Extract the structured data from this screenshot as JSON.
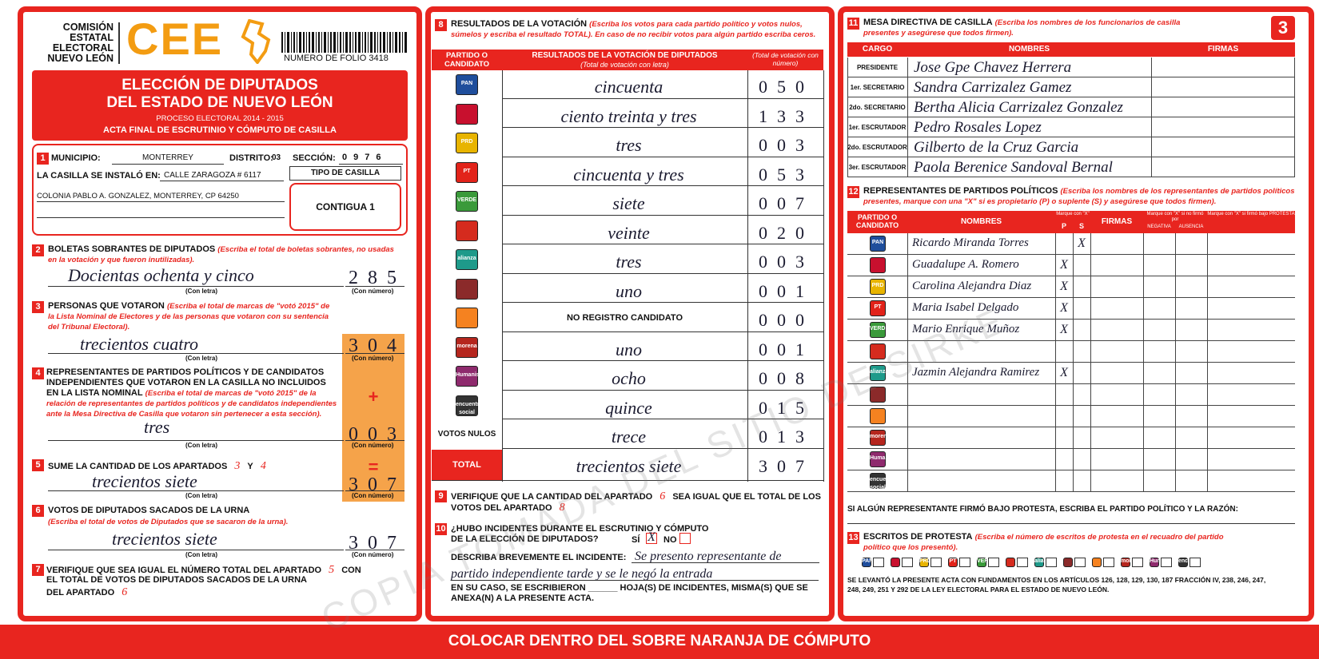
{
  "header": {
    "org": "COMISIÓN\nESTATAL\nELECTORAL\nNUEVO LEÓN",
    "logo": "CEE",
    "folio": "NUMERO DE FOLIO 3418",
    "title": "ELECCIÓN DE DIPUTADOS\nDEL ESTADO DE NUEVO LEÓN",
    "process": "PROCESO ELECTORAL 2014 - 2015",
    "subtitle": "ACTA FINAL DE ESCRUTINIO Y CÓMPUTO DE CASILLA",
    "page_number": "3"
  },
  "parties": [
    {
      "logo": "PAN",
      "color": "#1f4e9c"
    },
    {
      "color": "#c8102e"
    },
    {
      "logo": "PRD",
      "color": "#e8b400"
    },
    {
      "logo": "PT",
      "color": "#e2231a"
    },
    {
      "logo": "VERDE",
      "color": "#3a9a3a"
    },
    {
      "color": "#d52b1e"
    },
    {
      "logo": "alianza",
      "color": "#1e9a8a"
    },
    {
      "color": "#8b2a2a"
    },
    {
      "color": "#f58220"
    },
    {
      "logo": "morena",
      "color": "#b5261e"
    },
    {
      "logo": "Humanista",
      "color": "#8e2a6d"
    },
    {
      "logo": "encuentro social",
      "color": "#333333"
    }
  ],
  "section1": {
    "number": "1",
    "municipio_label": "MUNICIPIO:",
    "municipio": "MONTERREY",
    "distrito_label": "DISTRITO:",
    "distrito": "03",
    "seccion_label": "SECCIÓN:",
    "seccion": "0976",
    "casilla_label": "LA CASILLA SE INSTALÓ EN:",
    "address1": "CALLE ZARAGOZA # 6117",
    "address2": "COLONIA PABLO A. GONZALEZ, MONTERREY, CP 64250",
    "tipo_label": "TIPO DE CASILLA",
    "tipo": "CONTIGUA 1"
  },
  "captions": {
    "letter": "(Con letra)",
    "number": "(Con número)"
  },
  "section2": {
    "number": "2",
    "title": "BOLETAS SOBRANTES DE DIPUTADOS",
    "instruction": "(Escriba el total de boletas sobrantes, no usadas en la votación y que fueron inutilizadas).",
    "letter": "Docientas ochenta y cinco",
    "digits": "285"
  },
  "section3": {
    "number": "3",
    "title": "PERSONAS QUE VOTARON",
    "instruction": "(Escriba el total de marcas de \"votó 2015\" de la Lista Nominal de Electores y de las personas que votaron con su sentencia del Tribunal Electoral).",
    "letter": "trecientos cuatro",
    "digits": "304"
  },
  "section4": {
    "number": "4",
    "title": "REPRESENTANTES DE PARTIDOS POLÍTICOS Y DE CANDIDATOS INDEPENDIENTES QUE VOTARON EN LA CASILLA NO INCLUIDOS EN LA LISTA NOMINAL",
    "instruction": "(Escriba el total de marcas de \"votó 2015\" de la relación de representantes de partidos políticos y de candidatos independientes ante la Mesa Directiva de Casilla que votaron sin pertenecer a esta sección).",
    "letter": "tres",
    "digits": "003",
    "operator": "+"
  },
  "section5": {
    "number": "5",
    "title": "SUME LA CANTIDAD DE LOS APARTADOS",
    "hand_a": "3",
    "conj": "Y",
    "hand_b": "4",
    "letter": "trecientos siete",
    "digits": "307",
    "operator": "="
  },
  "section6": {
    "number": "6",
    "title": "VOTOS DE DIPUTADOS SACADOS DE LA URNA",
    "instruction": "(Escriba el total de votos de Diputados que se sacaron de la urna).",
    "letter": "trecientos siete",
    "digits": "307"
  },
  "section7": {
    "number": "7",
    "line1": "VERIFIQUE QUE SEA IGUAL EL NÚMERO TOTAL DEL APARTADO",
    "hand1": "5",
    "line1b": "CON",
    "line2": "EL TOTAL DE VOTOS DE DIPUTADOS SACADOS DE LA URNA",
    "line3": "DEL APARTADO",
    "hand2": "6"
  },
  "section8": {
    "number": "8",
    "title": "RESULTADOS DE LA VOTACIÓN",
    "instruction": "(Escriba los votos para cada partido político y votos nulos, súmelos y escriba el resultado TOTAL). En caso de no recibir votos para algún partido escriba ceros.",
    "col_party": "PARTIDO O CANDIDATO",
    "col_letter": "RESULTADOS DE LA VOTACIÓN DE DIPUTADOS",
    "col_letter_sub": "(Total de votación con letra)",
    "col_number": "(Total de votación con número)",
    "rows": [
      {
        "letter": "cincuenta",
        "digits": "050"
      },
      {
        "letter": "ciento treinta y tres",
        "digits": "133"
      },
      {
        "letter": "tres",
        "digits": "003"
      },
      {
        "letter": "cincuenta y tres",
        "digits": "053"
      },
      {
        "letter": "siete",
        "digits": "007"
      },
      {
        "letter": "veinte",
        "digits": "020"
      },
      {
        "letter": "tres",
        "digits": "003"
      },
      {
        "letter": "uno",
        "digits": "001"
      },
      {
        "note": "NO REGISTRO CANDIDATO",
        "digits": "000"
      },
      {
        "letter": "uno",
        "digits": "001"
      },
      {
        "letter": "ocho",
        "digits": "008"
      },
      {
        "letter": "quince",
        "digits": "015"
      }
    ],
    "nulos_label": "VOTOS NULOS",
    "nulos_letter": "trece",
    "nulos_digits": "013",
    "total_label": "TOTAL",
    "total_letter": "trecientos siete",
    "total_digits": "307"
  },
  "section9": {
    "number": "9",
    "line1": "VERIFIQUE QUE LA CANTIDAD DEL APARTADO",
    "hand1": "6",
    "line1b": "SEA IGUAL QUE EL TOTAL DE LOS",
    "line2": "VOTOS DEL APARTADO",
    "hand2": "8"
  },
  "section10": {
    "number": "10",
    "question": "¿HUBO INCIDENTES DURANTE EL ESCRUTINIO Y CÓMPUTO DE LA ELECCIÓN DE DIPUTADOS?",
    "yes_label": "SÍ",
    "yes_mark": "X",
    "no_label": "NO",
    "describe_label": "DESCRIBA BREVEMENTE EL INCIDENTE:",
    "incident": "Se presento representante de partido independiente tarde y se le negó la entrada",
    "annex": "EN SU CASO, SE ESCRIBIERON ______ HOJA(S) DE INCIDENTES, MISMA(S) QUE SE ANEXA(N) A LA PRESENTE ACTA."
  },
  "section11": {
    "number": "11",
    "title": "MESA DIRECTIVA DE CASILLA",
    "instruction": "(Escriba los nombres de los funcionarios de casilla presentes y asegúrese que todos firmen).",
    "col_cargo": "CARGO",
    "col_names": "NOMBRES",
    "col_firmas": "FIRMAS",
    "rows": [
      {
        "cargo": "PRESIDENTE",
        "name": "Jose Gpe Chavez Herrera"
      },
      {
        "cargo": "1er. SECRETARIO",
        "name": "Sandra Carrizalez Gamez"
      },
      {
        "cargo": "2do. SECRETARIO",
        "name": "Bertha Alicia Carrizalez Gonzalez"
      },
      {
        "cargo": "1er. ESCRUTADOR",
        "name": "Pedro Rosales Lopez"
      },
      {
        "cargo": "2do. ESCRUTADOR",
        "name": "Gilberto de la Cruz Garcia"
      },
      {
        "cargo": "3er. ESCRUTADOR",
        "name": "Paola Berenice Sandoval Bernal"
      }
    ]
  },
  "section12": {
    "number": "12",
    "title": "REPRESENTANTES DE PARTIDOS POLÍTICOS",
    "instruction": "(Escriba los nombres de los representantes de partidos políticos presentes, marque con una \"X\" si es propietario (P) o suplente (S) y asegúrese que todos firmen).",
    "col_party": "PARTIDO O CANDIDATO",
    "col_names": "NOMBRES",
    "col_mark": "Marque con \"X\"",
    "col_p": "P",
    "col_s": "S",
    "col_firmas": "FIRMAS",
    "col_nofirma": "Marque con \"X\" si no firmó por",
    "col_negativa": "NEGATIVA",
    "col_ausencia": "AUSENCIA",
    "col_protesta": "Marque con \"X\" si firmó bajo PROTESTA",
    "rows": [
      {
        "name": "Ricardo Miranda Torres",
        "s": "X"
      },
      {
        "name": "Guadalupe A. Romero",
        "p": "X"
      },
      {
        "name": "Carolina Alejandra Diaz",
        "p": "X"
      },
      {
        "name": "Maria Isabel Delgado",
        "p": "X"
      },
      {
        "name": "Mario Enrique Muñoz",
        "p": "X"
      },
      null,
      {
        "name": "Jazmin Alejandra Ramirez",
        "p": "X"
      },
      null,
      null,
      null,
      null,
      null
    ],
    "note": "SI ALGÚN REPRESENTANTE FIRMÓ BAJO PROTESTA, ESCRIBA EL PARTIDO POLÍTICO Y LA RAZÓN:"
  },
  "section13": {
    "number": "13",
    "title": "ESCRITOS DE PROTESTA",
    "instruction": "(Escriba el número de escritos de protesta en el recuadro del partido político que los presentó).",
    "law": "SE LEVANTÓ LA PRESENTE ACTA CON FUNDAMENTOS EN LOS ARTÍCULOS 126, 128, 129, 130, 187 FRACCIÓN IV, 238, 246, 247, 248, 249, 251 Y 292 DE LA LEY ELECTORAL PARA EL ESTADO DE NUEVO LEÓN."
  },
  "footer": {
    "banner": "COLOCAR DENTRO DEL SOBRE NARANJA DE CÓMPUTO"
  },
  "watermark": "COPIA TOMADA DEL SITIO DE SIRKE"
}
